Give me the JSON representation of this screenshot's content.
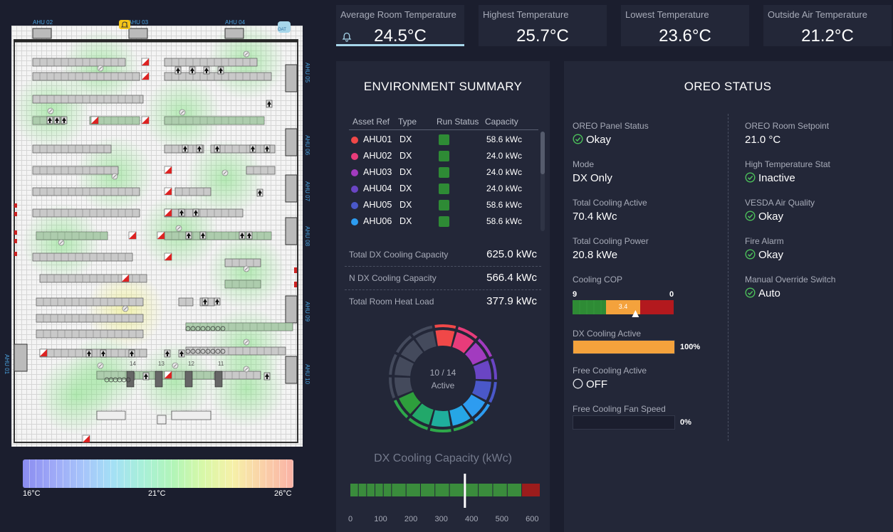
{
  "floorplan": {
    "ahu_labels": [
      "AHU 02",
      "AHU 03",
      "AHU 04",
      "AHU 05",
      "AHU 06",
      "AHU 07",
      "AHU 08",
      "AHU 09",
      "AHU 10",
      "AHU 01"
    ],
    "oat_label": "OAT",
    "rack_numbers": [
      "14",
      "13",
      "12",
      "11"
    ],
    "alarm_badge": "1"
  },
  "temp_legend": {
    "min_label": "16°C",
    "mid_label": "21°C",
    "max_label": "26°C",
    "gradient_colors": [
      "#8a8cf0",
      "#9ea8f7",
      "#a6c4fa",
      "#a4e0f5",
      "#a8f0d8",
      "#b2f5b8",
      "#d8f8a8",
      "#f6f0a8",
      "#fad0a8",
      "#fab2a6"
    ]
  },
  "kpis": [
    {
      "title": "Average Room Temperature",
      "value": "24.5°C"
    },
    {
      "title": "Highest Temperature",
      "value": "25.7°C"
    },
    {
      "title": "Lowest Temperature",
      "value": "23.6°C"
    },
    {
      "title": "Outside Air Temperature",
      "value": "21.2°C"
    }
  ],
  "env": {
    "title": "ENVIRONMENT SUMMARY",
    "headers": [
      "Asset Ref",
      "Type",
      "Run Status",
      "Capacity"
    ],
    "rows": [
      {
        "ref": "AHU01",
        "type": "DX",
        "capacity": "58.6 kWc",
        "color": "#f04848"
      },
      {
        "ref": "AHU02",
        "type": "DX",
        "capacity": "24.0 kWc",
        "color": "#e83c7a"
      },
      {
        "ref": "AHU03",
        "type": "DX",
        "capacity": "24.0 kWc",
        "color": "#a23bbf"
      },
      {
        "ref": "AHU04",
        "type": "DX",
        "capacity": "24.0 kWc",
        "color": "#6a45c4"
      },
      {
        "ref": "AHU05",
        "type": "DX",
        "capacity": "58.6 kWc",
        "color": "#4a58c9"
      },
      {
        "ref": "AHU06",
        "type": "DX",
        "capacity": "58.6 kWc",
        "color": "#2d9cf0"
      }
    ],
    "summary": [
      {
        "label": "Total DX Cooling Capacity",
        "value": "625.0 kWc"
      },
      {
        "label": "N DX Cooling Capacity",
        "value": "566.4 kWc"
      },
      {
        "label": "Total Room Heat Load",
        "value": "377.9 kWc"
      }
    ],
    "donut": {
      "center_value": "10 / 14",
      "center_label": "Active",
      "active": 10,
      "total": 14
    },
    "dx_chart": {
      "title": "DX Cooling Capacity (kWc)",
      "ticks": [
        "0",
        "100",
        "200",
        "300",
        "400",
        "500",
        "600"
      ],
      "marker_value": 377.9,
      "max": 625,
      "green_until": 566.4
    }
  },
  "oreo": {
    "title": "OREO STATUS",
    "left": [
      {
        "label": "OREO Panel Status",
        "value": "Okay",
        "icon": "check-circle-icon"
      },
      {
        "label": "Mode",
        "value": "DX Only"
      },
      {
        "label": "Total Cooling Active",
        "value": "70.4 kWc"
      },
      {
        "label": "Total Cooling Power",
        "value": "20.8 kWe"
      }
    ],
    "cop": {
      "label": "Cooling COP",
      "scale_left": "9",
      "scale_right": "0",
      "value": "3.4"
    },
    "dx_active": {
      "label": "DX Cooling Active",
      "value": "100%",
      "fraction": 1.0
    },
    "free_cooling": {
      "label": "Free Cooling Active",
      "value": "OFF",
      "icon": "radio-off-icon"
    },
    "fan_speed": {
      "label": "Free Cooling Fan Speed",
      "value": "0%",
      "fraction": 0
    },
    "right": [
      {
        "label": "OREO Room Setpoint",
        "value": "21.0 °C"
      },
      {
        "label": "High Temperature Stat",
        "value": "Inactive",
        "icon": "check-circle-icon"
      },
      {
        "label": "VESDA Air Quality",
        "value": "Okay",
        "icon": "check-circle-icon"
      },
      {
        "label": "Fire Alarm",
        "value": "Okay",
        "icon": "check-circle-icon"
      },
      {
        "label": "Manual Override Switch",
        "value": "Auto",
        "icon": "check-circle-icon"
      }
    ]
  }
}
